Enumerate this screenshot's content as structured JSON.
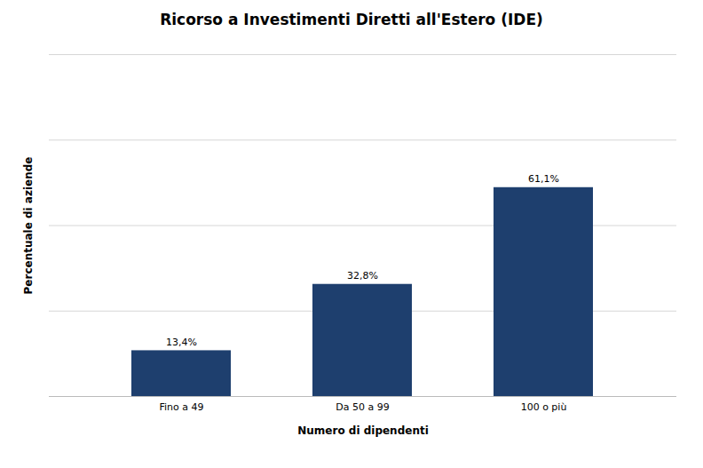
{
  "chart_data": {
    "type": "bar",
    "title": "Ricorso a Investimenti Diretti all'Estero (IDE)",
    "categories": [
      "Fino a 49",
      "Da 50 a 99",
      "100 o più"
    ],
    "values": [
      13.4,
      32.8,
      61.1
    ],
    "value_labels": [
      "13,4%",
      "32,8%",
      "61,1%"
    ],
    "data_labels": true,
    "color": "#1e3f6e",
    "xlabel": "Numero di dipendenti",
    "ylabel": "Percentuale di aziende",
    "ylim": [
      0,
      100
    ],
    "yticks": [
      25,
      50,
      75,
      100
    ],
    "grid": true,
    "tick_labels": "x"
  }
}
